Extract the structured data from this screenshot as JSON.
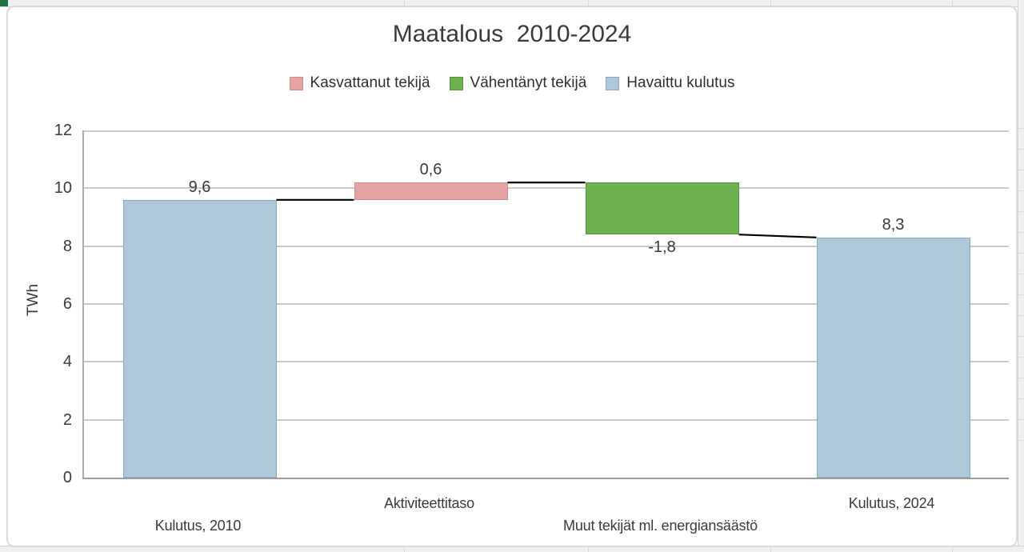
{
  "chart_title": "Maatalous  2010-2024",
  "legend": {
    "items": [
      {
        "label": "Kasvattanut tekijä",
        "kind": "increase"
      },
      {
        "label": "Vähentänyt tekijä",
        "kind": "decrease"
      },
      {
        "label": "Havaittu kulutus",
        "kind": "total"
      }
    ]
  },
  "palette": {
    "increase": {
      "fill": "#e5a4a4",
      "border": "#cd8b8b"
    },
    "decrease": {
      "fill": "#6cb14e",
      "border": "#559140"
    },
    "total": {
      "fill": "#aec8da",
      "border": "#85abc4"
    },
    "connector": "#000000",
    "gridline": "#c9c9c9",
    "text": "#3a3a3a"
  },
  "chart_data": {
    "type": "bar",
    "subtype": "waterfall",
    "title": "Maatalous  2010-2024",
    "ylabel": "TWh",
    "ylim": [
      0,
      12
    ],
    "y_ticks": [
      0,
      2,
      4,
      6,
      8,
      10,
      12
    ],
    "grid": true,
    "legend_position": "top",
    "categories": [
      "Kulutus, 2010",
      "Aktiviteettitaso",
      "Muut tekijät ml. energiansäästö",
      "Kulutus, 2024"
    ],
    "bars": [
      {
        "category": "Kulutus, 2010",
        "kind": "total",
        "start": 0,
        "end": 9.6,
        "value": 9.6,
        "label": "9,6"
      },
      {
        "category": "Aktiviteettitaso",
        "kind": "increase",
        "start": 9.6,
        "end": 10.2,
        "value": 0.6,
        "label": "0,6"
      },
      {
        "category": "Muut tekijät ml. energiansäästö",
        "kind": "decrease",
        "start": 10.2,
        "end": 8.4,
        "value": -1.8,
        "label": "-1,8"
      },
      {
        "category": "Kulutus, 2024",
        "kind": "total",
        "start": 0,
        "end": 8.3,
        "value": 8.3,
        "label": "8,3"
      }
    ],
    "connectors": [
      {
        "from_bar": 0,
        "to_bar": 1,
        "y_from": 9.6,
        "y_to": 9.6
      },
      {
        "from_bar": 1,
        "to_bar": 2,
        "y_from": 10.2,
        "y_to": 10.2
      },
      {
        "from_bar": 2,
        "to_bar": 3,
        "y_from": 8.4,
        "y_to": 8.3
      }
    ]
  }
}
